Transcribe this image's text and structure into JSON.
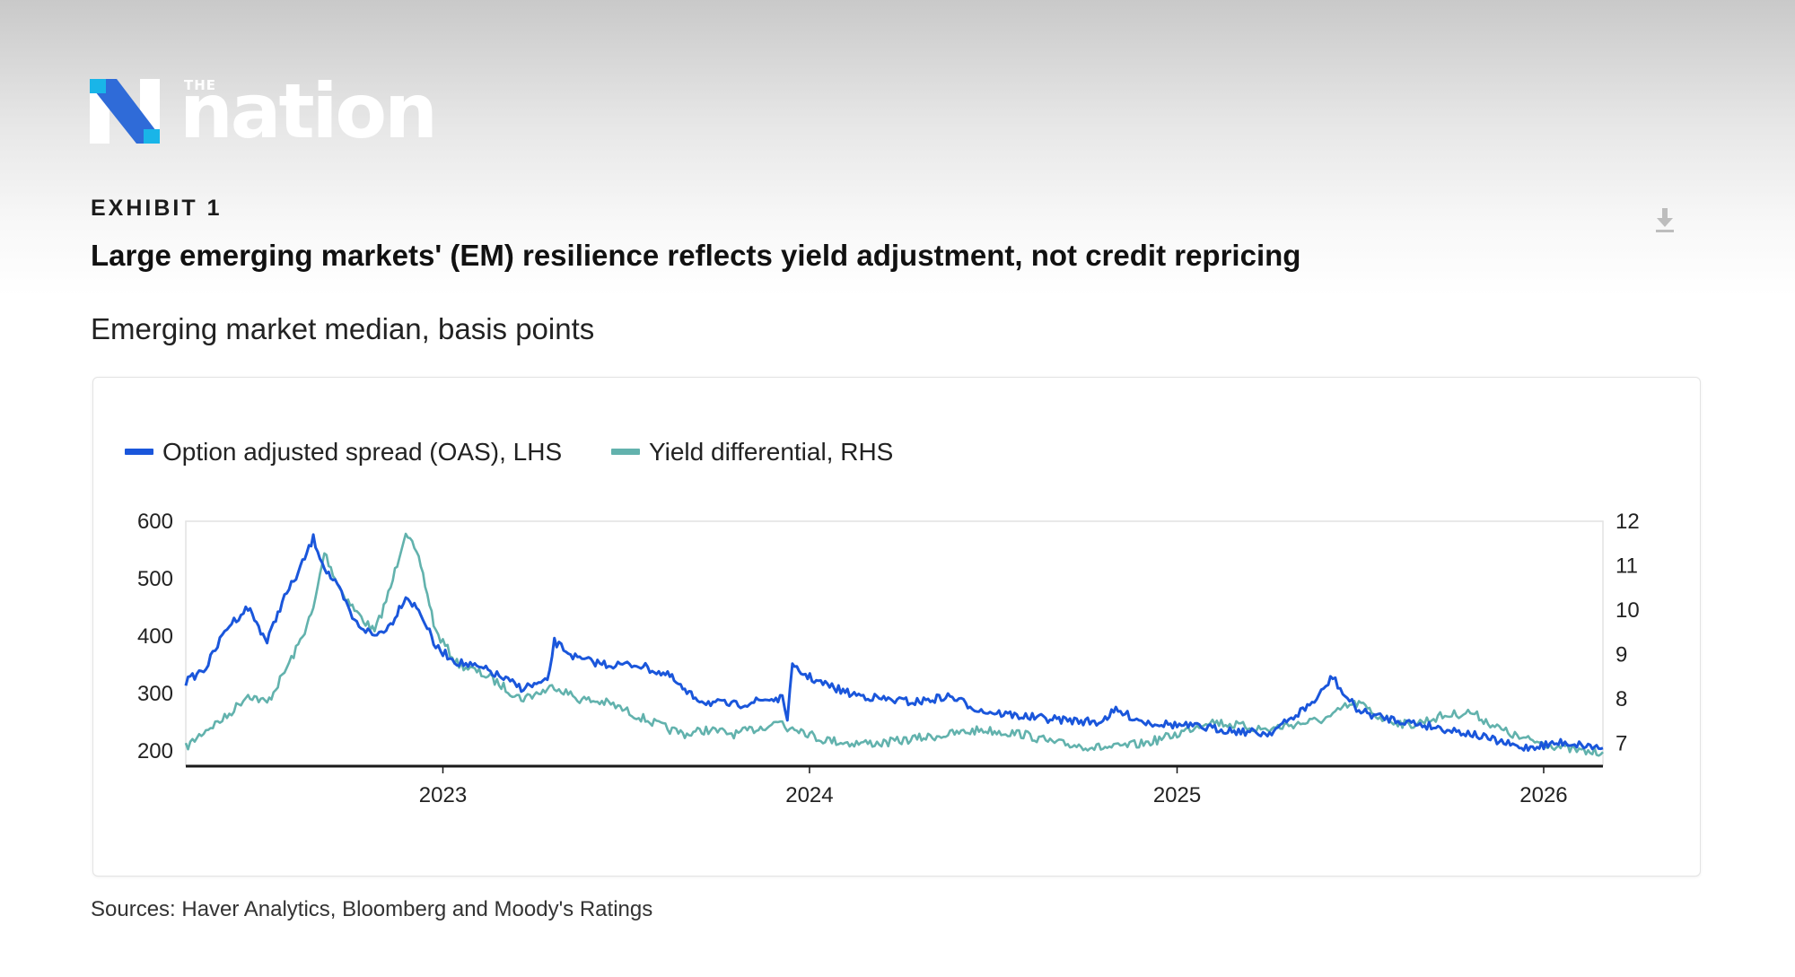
{
  "brand": {
    "the": "THE",
    "name": "nation",
    "logo_colors": {
      "mark_blue": "#2f6bd8",
      "mark_cyan": "#19b5e8",
      "mark_white": "#ffffff"
    }
  },
  "header": {
    "exhibit": "EXHIBIT 1",
    "title": "Large emerging markets' (EM) resilience reflects yield adjustment, not credit repricing",
    "subtitle": "Emerging market median, basis points",
    "download_icon": "download-icon"
  },
  "footer": {
    "source": "Sources: Haver Analytics, Bloomberg and Moody's Ratings"
  },
  "chart_data": {
    "type": "line",
    "title": "Large emerging markets' (EM) resilience reflects yield adjustment, not credit repricing",
    "subtitle": "Emerging market median, basis points",
    "legend_position": "top-left",
    "grid": false,
    "x_axis": {
      "type": "date",
      "range": [
        "2022-04-20",
        "2026-03-01"
      ],
      "ticks": [
        {
          "date": "2023-01-01",
          "label": "2023"
        },
        {
          "date": "2024-01-01",
          "label": "2024"
        },
        {
          "date": "2025-01-01",
          "label": "2025"
        },
        {
          "date": "2026-01-01",
          "label": "2026"
        }
      ]
    },
    "y_left": {
      "range": [
        175,
        600
      ],
      "ticks": [
        200,
        300,
        400,
        500,
        600
      ]
    },
    "y_right": {
      "range": [
        6.5,
        12
      ],
      "ticks": [
        7,
        8,
        9,
        10,
        11,
        12
      ]
    },
    "series": [
      {
        "name": "Option adjusted spread (OAS), LHS",
        "axis": "left",
        "color": "#1a56db",
        "points": [
          [
            "2022-04-20",
            320
          ],
          [
            "2022-05-10",
            345
          ],
          [
            "2022-05-31",
            415
          ],
          [
            "2022-06-21",
            450
          ],
          [
            "2022-07-10",
            390
          ],
          [
            "2022-07-25",
            460
          ],
          [
            "2022-08-10",
            510
          ],
          [
            "2022-08-25",
            570
          ],
          [
            "2022-09-05",
            520
          ],
          [
            "2022-09-20",
            480
          ],
          [
            "2022-10-05",
            425
          ],
          [
            "2022-10-25",
            400
          ],
          [
            "2022-11-10",
            420
          ],
          [
            "2022-11-25",
            470
          ],
          [
            "2022-12-10",
            440
          ],
          [
            "2022-12-25",
            380
          ],
          [
            "2023-01-15",
            355
          ],
          [
            "2023-02-15",
            340
          ],
          [
            "2023-03-20",
            310
          ],
          [
            "2023-04-15",
            320
          ],
          [
            "2023-04-22",
            390
          ],
          [
            "2023-05-15",
            360
          ],
          [
            "2023-06-15",
            350
          ],
          [
            "2023-07-15",
            350
          ],
          [
            "2023-08-15",
            330
          ],
          [
            "2023-09-01",
            300
          ],
          [
            "2023-09-20",
            285
          ],
          [
            "2023-10-20",
            280
          ],
          [
            "2023-11-20",
            290
          ],
          [
            "2023-12-05",
            290
          ],
          [
            "2023-12-10",
            260
          ],
          [
            "2023-12-15",
            345
          ],
          [
            "2024-01-10",
            320
          ],
          [
            "2024-02-10",
            300
          ],
          [
            "2024-03-15",
            290
          ],
          [
            "2024-04-15",
            285
          ],
          [
            "2024-05-20",
            295
          ],
          [
            "2024-06-20",
            270
          ],
          [
            "2024-08-01",
            260
          ],
          [
            "2024-09-01",
            255
          ],
          [
            "2024-10-15",
            250
          ],
          [
            "2024-11-01",
            270
          ],
          [
            "2024-12-01",
            250
          ],
          [
            "2025-01-01",
            245
          ],
          [
            "2025-02-01",
            240
          ],
          [
            "2025-03-01",
            235
          ],
          [
            "2025-04-01",
            230
          ],
          [
            "2025-04-20",
            250
          ],
          [
            "2025-05-20",
            290
          ],
          [
            "2025-06-05",
            330
          ],
          [
            "2025-06-15",
            300
          ],
          [
            "2025-07-01",
            270
          ],
          [
            "2025-07-20",
            260
          ],
          [
            "2025-08-20",
            250
          ],
          [
            "2025-09-20",
            240
          ],
          [
            "2025-10-20",
            230
          ],
          [
            "2025-11-20",
            215
          ],
          [
            "2025-12-10",
            205
          ],
          [
            "2026-01-01",
            210
          ],
          [
            "2026-01-20",
            215
          ],
          [
            "2026-02-10",
            210
          ],
          [
            "2026-03-01",
            205
          ]
        ]
      },
      {
        "name": "Yield differential, RHS",
        "axis": "right",
        "color": "#62b2ad",
        "points": [
          [
            "2022-04-20",
            6.9
          ],
          [
            "2022-05-10",
            7.3
          ],
          [
            "2022-05-31",
            7.6
          ],
          [
            "2022-06-21",
            8.1
          ],
          [
            "2022-07-10",
            7.9
          ],
          [
            "2022-07-25",
            8.5
          ],
          [
            "2022-08-10",
            9.2
          ],
          [
            "2022-08-25",
            10.0
          ],
          [
            "2022-09-05",
            11.3
          ],
          [
            "2022-09-20",
            10.5
          ],
          [
            "2022-10-05",
            10.0
          ],
          [
            "2022-10-25",
            9.5
          ],
          [
            "2022-11-10",
            10.5
          ],
          [
            "2022-11-25",
            11.8
          ],
          [
            "2022-12-10",
            11.0
          ],
          [
            "2022-12-25",
            9.5
          ],
          [
            "2023-01-15",
            8.8
          ],
          [
            "2023-02-15",
            8.5
          ],
          [
            "2023-03-20",
            8.0
          ],
          [
            "2023-04-15",
            8.2
          ],
          [
            "2023-04-22",
            8.3
          ],
          [
            "2023-05-15",
            8.0
          ],
          [
            "2023-06-15",
            7.9
          ],
          [
            "2023-07-15",
            7.6
          ],
          [
            "2023-08-15",
            7.3
          ],
          [
            "2023-09-01",
            7.2
          ],
          [
            "2023-09-20",
            7.3
          ],
          [
            "2023-10-20",
            7.2
          ],
          [
            "2023-11-20",
            7.4
          ],
          [
            "2023-12-05",
            7.5
          ],
          [
            "2023-12-10",
            7.3
          ],
          [
            "2023-12-15",
            7.4
          ],
          [
            "2024-01-10",
            7.1
          ],
          [
            "2024-02-10",
            7.0
          ],
          [
            "2024-03-15",
            7.0
          ],
          [
            "2024-04-15",
            7.1
          ],
          [
            "2024-05-20",
            7.2
          ],
          [
            "2024-06-20",
            7.3
          ],
          [
            "2024-08-01",
            7.2
          ],
          [
            "2024-09-01",
            7.0
          ],
          [
            "2024-10-15",
            6.9
          ],
          [
            "2024-11-01",
            6.9
          ],
          [
            "2024-12-01",
            7.0
          ],
          [
            "2025-01-01",
            7.2
          ],
          [
            "2025-02-01",
            7.5
          ],
          [
            "2025-03-01",
            7.4
          ],
          [
            "2025-04-01",
            7.3
          ],
          [
            "2025-04-20",
            7.4
          ],
          [
            "2025-05-20",
            7.5
          ],
          [
            "2025-06-05",
            7.6
          ],
          [
            "2025-06-15",
            7.8
          ],
          [
            "2025-07-01",
            7.9
          ],
          [
            "2025-07-20",
            7.6
          ],
          [
            "2025-08-20",
            7.4
          ],
          [
            "2025-09-20",
            7.6
          ],
          [
            "2025-10-20",
            7.7
          ],
          [
            "2025-11-20",
            7.3
          ],
          [
            "2025-12-10",
            7.1
          ],
          [
            "2026-01-01",
            7.0
          ],
          [
            "2026-01-20",
            6.9
          ],
          [
            "2026-02-10",
            6.8
          ],
          [
            "2026-03-01",
            6.8
          ]
        ]
      }
    ]
  }
}
